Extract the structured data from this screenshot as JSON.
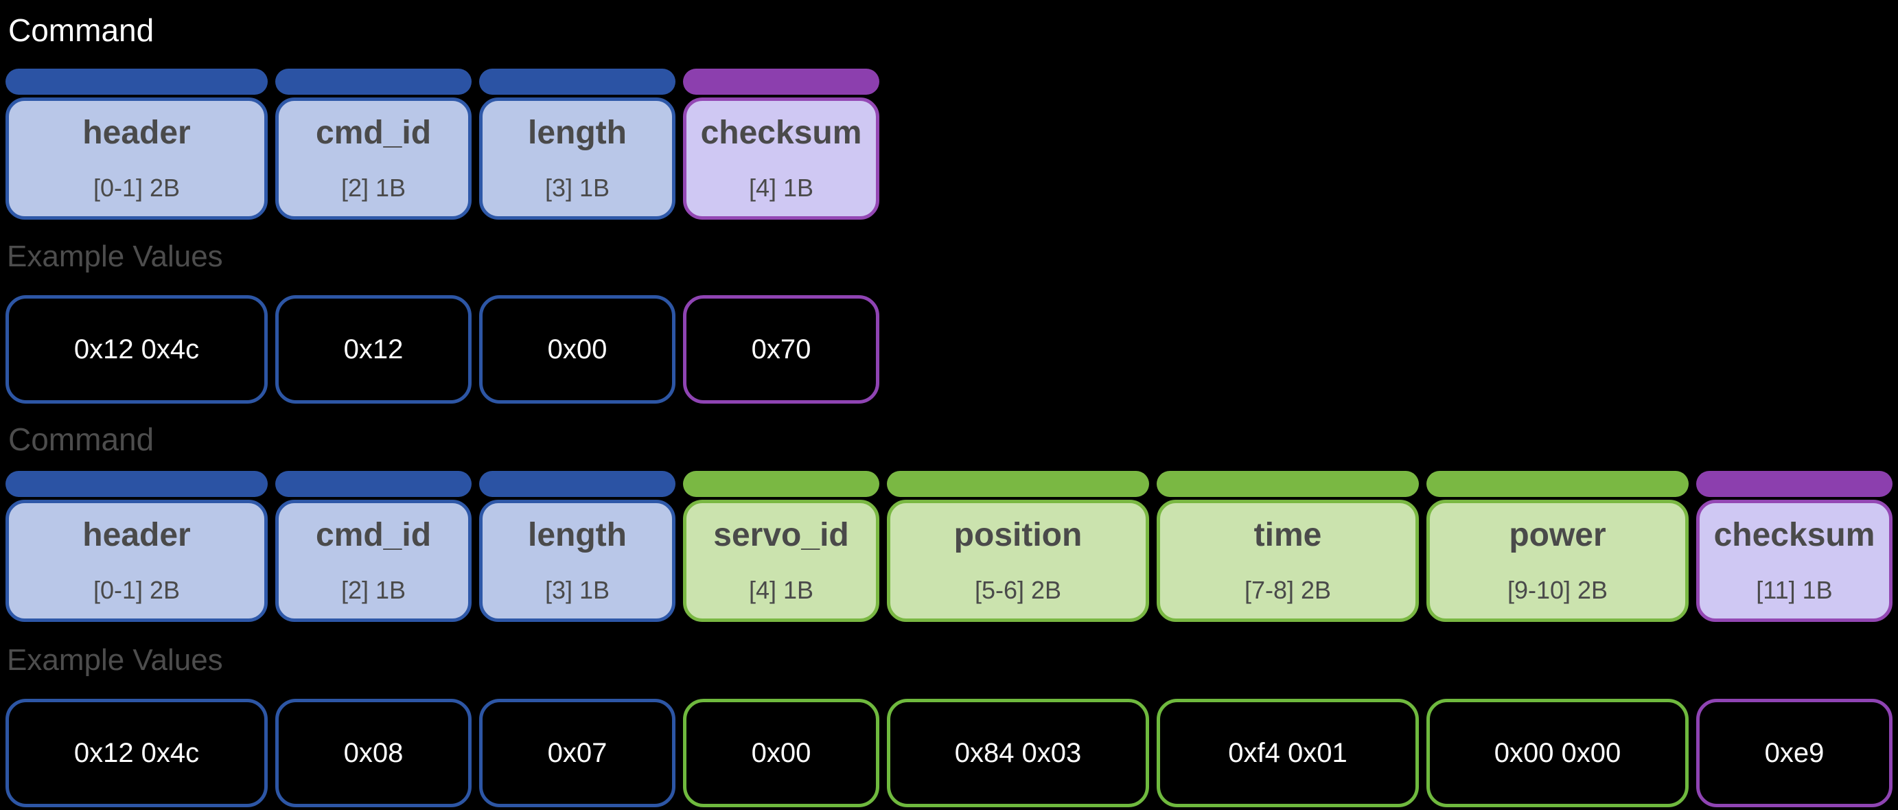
{
  "palette": {
    "page_background": "#000000",
    "title_white": "#ffffff",
    "label_gray": "#4d4d4d",
    "field_text": "#4a4a4a",
    "blue": {
      "bar": "#2b53a4",
      "body": "#b9c7e8",
      "border": "#2e58a8",
      "value_border": "#2d56a5"
    },
    "green": {
      "bar": "#7ab843",
      "body": "#cbe3ae",
      "border": "#7ab843",
      "value_border": "#6fb93e"
    },
    "purple": {
      "bar": "#8c3fae",
      "body": "#cfc8f3",
      "border": "#9448b4",
      "value_border": "#8f44b3"
    }
  },
  "sections": [
    {
      "title": "Command",
      "title_color": "white",
      "example_label": "Example Values",
      "fields": [
        {
          "name": "header",
          "bytes": "[0-1] 2B",
          "color": "blue",
          "size": "2B"
        },
        {
          "name": "cmd_id",
          "bytes": "[2] 1B",
          "color": "blue",
          "size": "1B"
        },
        {
          "name": "length",
          "bytes": "[3] 1B",
          "color": "blue",
          "size": "1B"
        },
        {
          "name": "checksum",
          "bytes": "[4] 1B",
          "color": "purple",
          "size": "1B"
        }
      ],
      "values": [
        {
          "text": "0x12 0x4c",
          "color": "blue",
          "size": "2B"
        },
        {
          "text": "0x12",
          "color": "blue",
          "size": "1B"
        },
        {
          "text": "0x00",
          "color": "blue",
          "size": "1B"
        },
        {
          "text": "0x70",
          "color": "purple",
          "size": "1B"
        }
      ]
    },
    {
      "title": "Command",
      "title_color": "gray",
      "example_label": "Example Values",
      "fields": [
        {
          "name": "header",
          "bytes": "[0-1] 2B",
          "color": "blue",
          "size": "2B"
        },
        {
          "name": "cmd_id",
          "bytes": "[2] 1B",
          "color": "blue",
          "size": "1B"
        },
        {
          "name": "length",
          "bytes": "[3] 1B",
          "color": "blue",
          "size": "1B"
        },
        {
          "name": "servo_id",
          "bytes": "[4] 1B",
          "color": "green",
          "size": "1B"
        },
        {
          "name": "position",
          "bytes": "[5-6] 2B",
          "color": "green",
          "size": "2B"
        },
        {
          "name": "time",
          "bytes": "[7-8] 2B",
          "color": "green",
          "size": "2B"
        },
        {
          "name": "power",
          "bytes": "[9-10] 2B",
          "color": "green",
          "size": "2B"
        },
        {
          "name": "checksum",
          "bytes": "[11] 1B",
          "color": "purple",
          "size": "1B"
        }
      ],
      "values": [
        {
          "text": "0x12 0x4c",
          "color": "blue",
          "size": "2B"
        },
        {
          "text": "0x08",
          "color": "blue",
          "size": "1B"
        },
        {
          "text": "0x07",
          "color": "blue",
          "size": "1B"
        },
        {
          "text": "0x00",
          "color": "green",
          "size": "1B"
        },
        {
          "text": "0x84 0x03",
          "color": "green",
          "size": "2B"
        },
        {
          "text": "0xf4 0x01",
          "color": "green",
          "size": "2B"
        },
        {
          "text": "0x00 0x00",
          "color": "green",
          "size": "2B"
        },
        {
          "text": "0xe9",
          "color": "purple",
          "size": "1B"
        }
      ]
    }
  ]
}
